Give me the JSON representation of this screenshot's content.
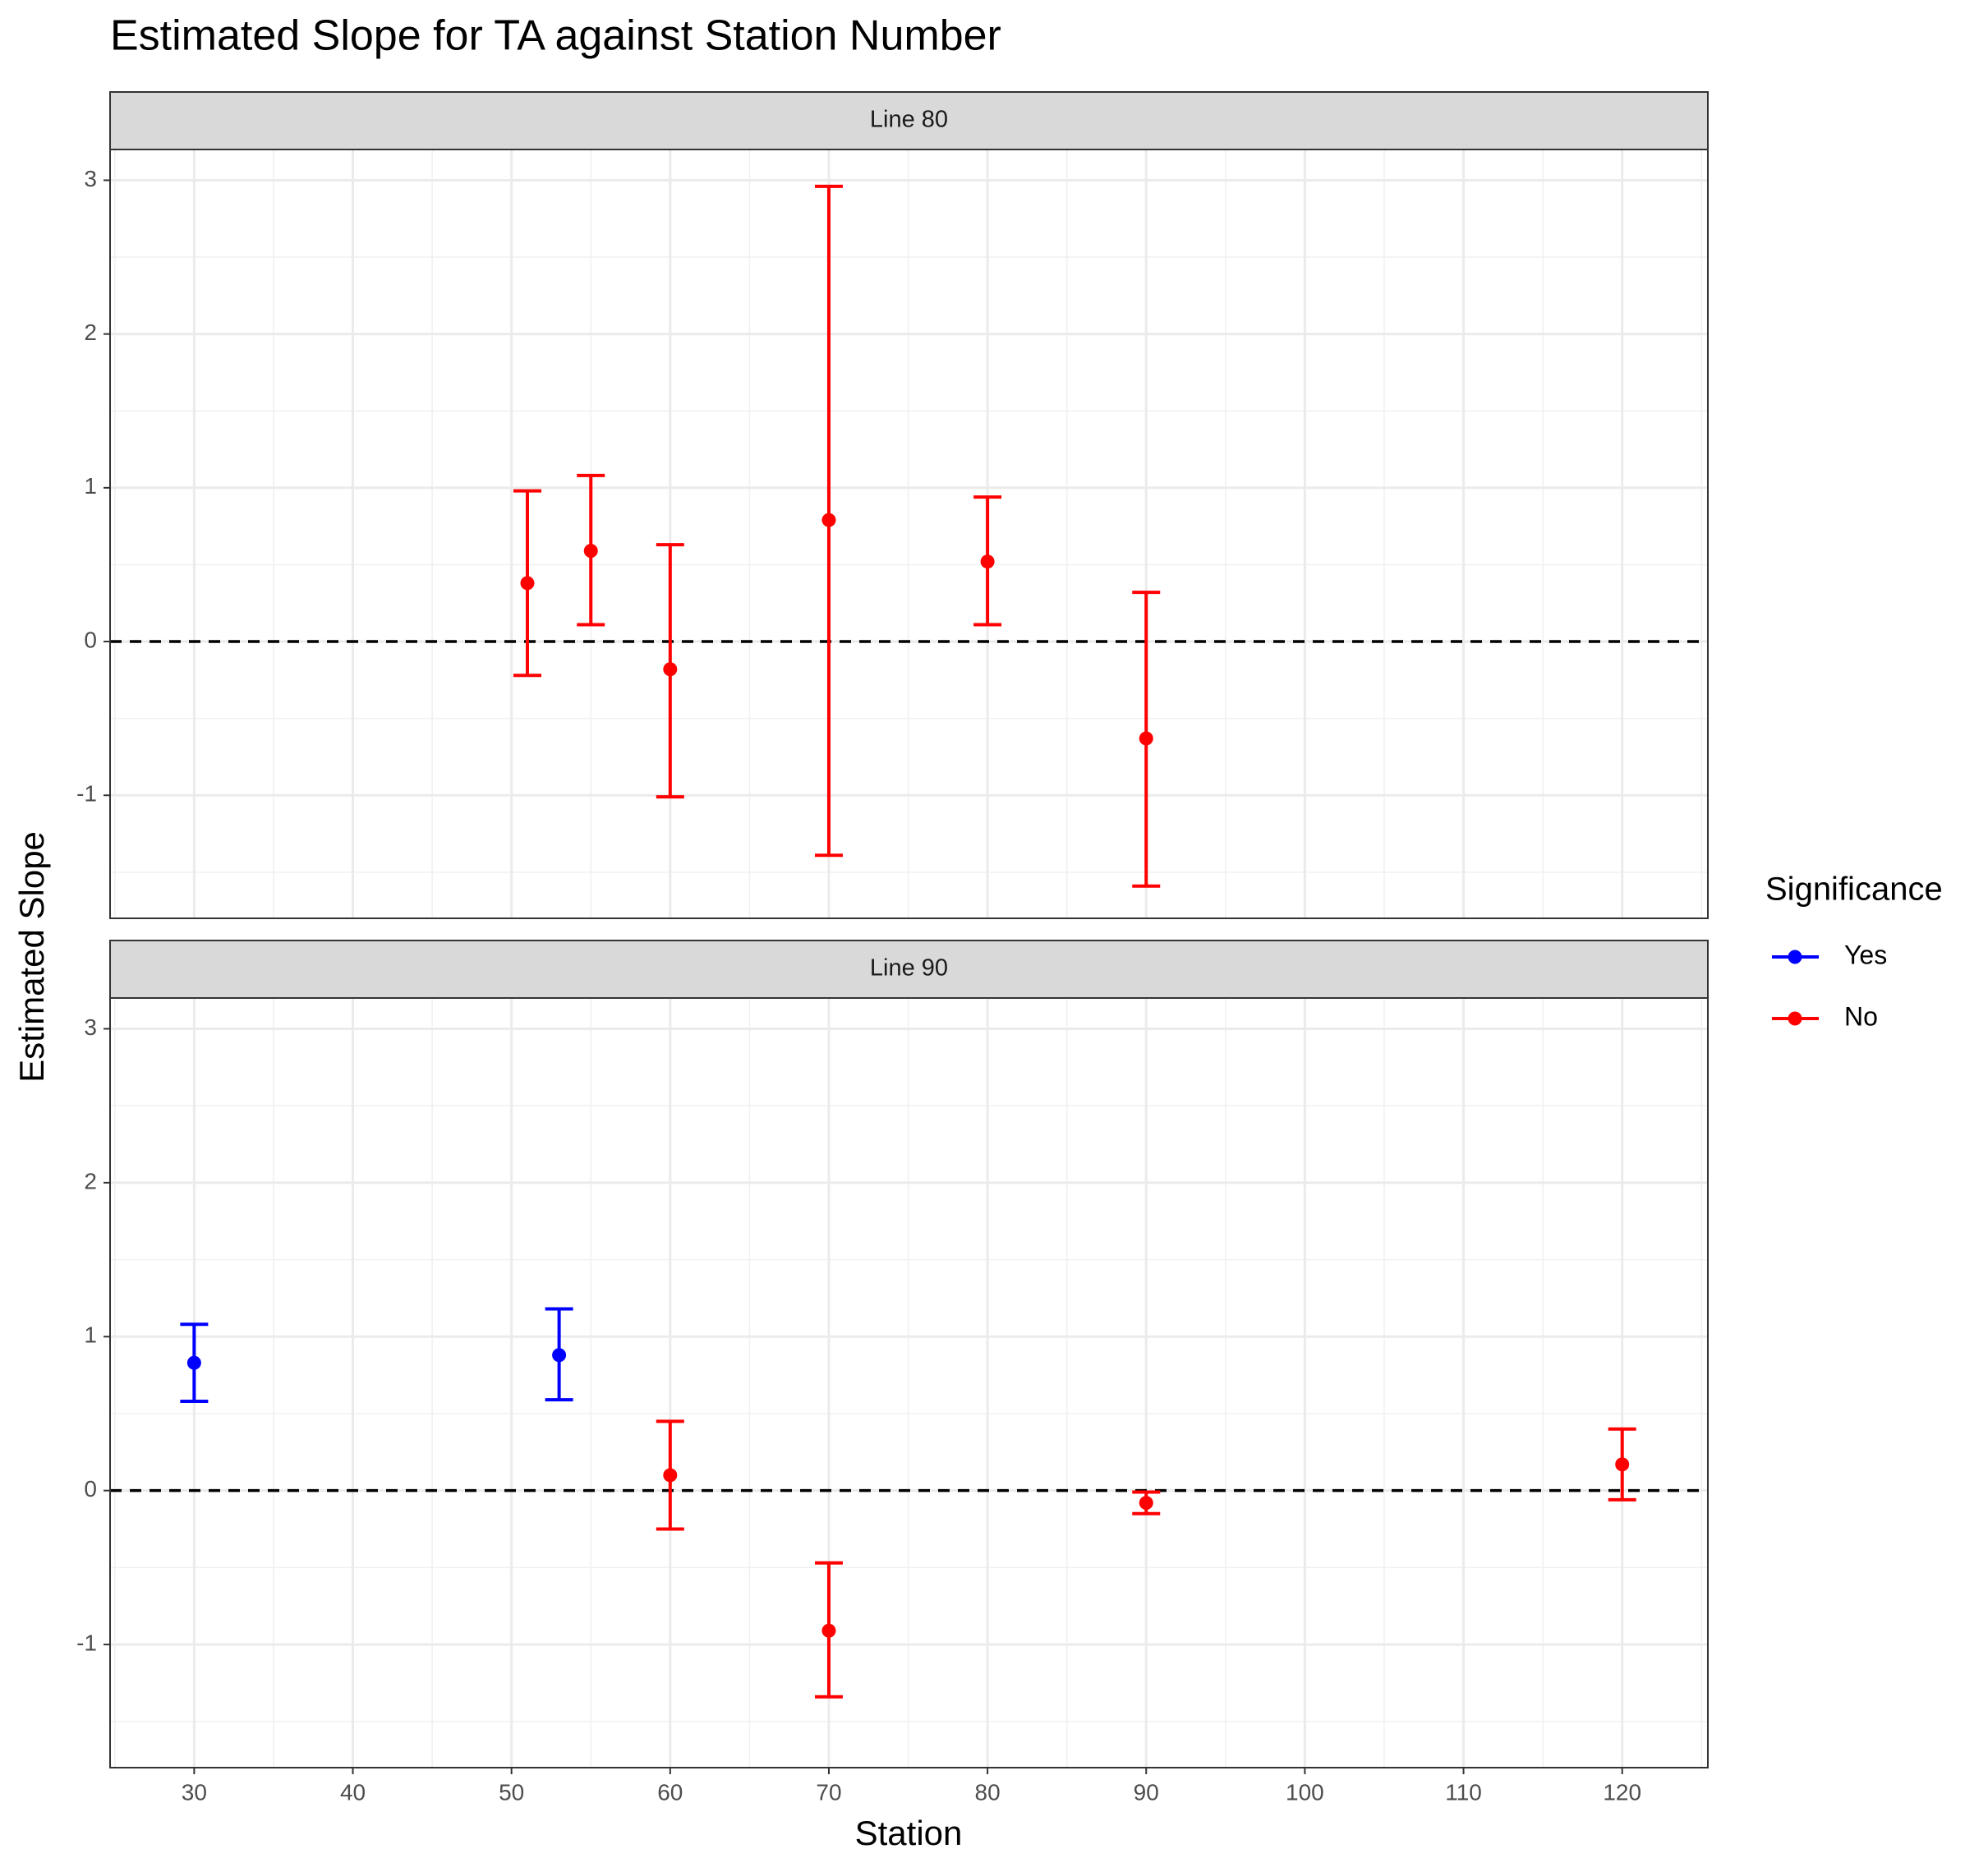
{
  "chart_data": {
    "type": "errorbar",
    "title": "Estimated Slope for TA against Station Number",
    "xlabel": "Station",
    "ylabel": "Estimated Slope",
    "xlim": [
      24.7,
      125.4
    ],
    "xticks": [
      30,
      40,
      50,
      60,
      70,
      80,
      90,
      100,
      110,
      120
    ],
    "ylim": [
      -1.8,
      3.2
    ],
    "yticks": [
      -1,
      0,
      1,
      2,
      3
    ],
    "hline": 0,
    "grid": true,
    "legend": {
      "title": "Significance",
      "position": "right",
      "entries": [
        {
          "name": "Yes",
          "color": "#0000ff"
        },
        {
          "name": "No",
          "color": "#ff0000"
        }
      ]
    },
    "panels": [
      {
        "label": "Line 80",
        "series": [
          {
            "x": [],
            "values": [],
            "lower": [],
            "upper": []
          },
          {
            "x": [
              51,
              55,
              60,
              70,
              80,
              90
            ],
            "values": [
              0.38,
              0.59,
              -0.18,
              0.79,
              0.52,
              -0.63
            ],
            "lower": [
              -0.22,
              0.11,
              -1.01,
              -1.39,
              0.11,
              -1.59
            ],
            "upper": [
              0.98,
              1.08,
              0.63,
              2.96,
              0.94,
              0.32
            ]
          }
        ]
      },
      {
        "label": "Line 90",
        "series": [
          {
            "x": [
              30,
              53
            ],
            "values": [
              0.83,
              0.88
            ],
            "lower": [
              0.58,
              0.59
            ],
            "upper": [
              1.08,
              1.18
            ]
          },
          {
            "x": [
              60,
              70,
              90,
              120
            ],
            "values": [
              0.1,
              -0.91,
              -0.08,
              0.17
            ],
            "lower": [
              -0.25,
              -1.34,
              -0.15,
              -0.06
            ],
            "upper": [
              0.45,
              -0.47,
              -0.01,
              0.4
            ]
          }
        ]
      }
    ]
  }
}
